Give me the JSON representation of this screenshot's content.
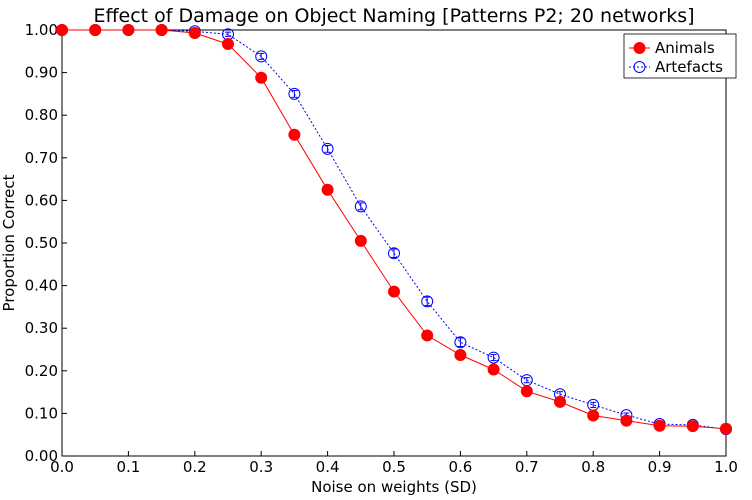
{
  "chart_data": {
    "type": "line",
    "title": "Effect of Damage on Object Naming [Patterns P2; 20 networks]",
    "xlabel": "Noise on weights (SD)",
    "ylabel": "Proportion Correct",
    "xlim": [
      0.0,
      1.0
    ],
    "ylim": [
      0.0,
      1.0
    ],
    "x_ticks": [
      "0.0",
      "0.1",
      "0.2",
      "0.3",
      "0.4",
      "0.5",
      "0.6",
      "0.7",
      "0.8",
      "0.9",
      "1.0"
    ],
    "y_ticks": [
      "0.00",
      "0.10",
      "0.20",
      "0.30",
      "0.40",
      "0.50",
      "0.60",
      "0.70",
      "0.80",
      "0.90",
      "1.00"
    ],
    "grid": false,
    "legend_position": "top-right",
    "x": [
      0.0,
      0.05,
      0.1,
      0.15,
      0.2,
      0.25,
      0.3,
      0.35,
      0.4,
      0.45,
      0.5,
      0.55,
      0.6,
      0.65,
      0.7,
      0.75,
      0.8,
      0.85,
      0.9,
      0.95,
      1.0
    ],
    "series": [
      {
        "name": "Animals",
        "color": "#ff0000",
        "line_style": "solid",
        "marker": "filled-circle",
        "values": [
          1.0,
          1.0,
          1.0,
          1.0,
          0.993,
          0.967,
          0.888,
          0.754,
          0.625,
          0.505,
          0.386,
          0.283,
          0.237,
          0.203,
          0.152,
          0.127,
          0.095,
          0.083,
          0.071,
          0.07,
          0.064
        ],
        "errors": [
          0,
          0,
          0,
          0,
          0.003,
          0.005,
          0.005,
          0.006,
          0.006,
          0.006,
          0.006,
          0.008,
          0.006,
          0.006,
          0.005,
          0.005,
          0.004,
          0.004,
          0.004,
          0.004,
          0.004
        ]
      },
      {
        "name": "Artefacts",
        "color": "#0000ff",
        "line_style": "dotted",
        "marker": "open-circle",
        "values": [
          1.0,
          1.0,
          1.0,
          1.0,
          0.997,
          0.99,
          0.938,
          0.85,
          0.721,
          0.586,
          0.476,
          0.363,
          0.267,
          0.231,
          0.178,
          0.145,
          0.12,
          0.096,
          0.075,
          0.073,
          0.063
        ],
        "errors": [
          0,
          0,
          0,
          0,
          0.002,
          0.005,
          0.007,
          0.008,
          0.008,
          0.008,
          0.01,
          0.01,
          0.01,
          0.007,
          0.006,
          0.006,
          0.006,
          0.005,
          0.004,
          0.004,
          0.003
        ]
      }
    ]
  }
}
